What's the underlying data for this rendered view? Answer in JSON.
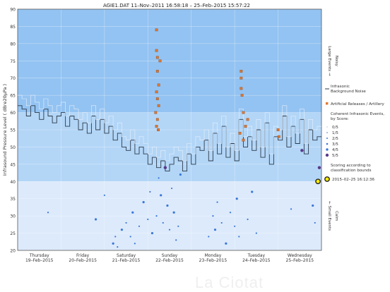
{
  "chart_data": {
    "type": "line",
    "title": "AGIE1.DAT   11–Nov–2011 16:58:18   –   25–Feb–2015 15:57:22",
    "ylabel": "Infrasound Pressure Level   ( dBre20µPa )",
    "ylim": [
      20,
      90
    ],
    "xlim": [
      0,
      7
    ],
    "grid": true,
    "y_ticks": [
      20,
      25,
      30,
      35,
      40,
      45,
      50,
      55,
      60,
      65,
      70,
      75,
      80,
      85,
      90
    ],
    "x_ticks": [
      {
        "x": 0.5,
        "day": "Thursday",
        "date": "19–Feb–2015"
      },
      {
        "x": 1.5,
        "day": "Friday",
        "date": "20–Feb–2015"
      },
      {
        "x": 2.5,
        "day": "Saturday",
        "date": "21–Feb–2015"
      },
      {
        "x": 3.5,
        "day": "Sunday",
        "date": "22–Feb–2015"
      },
      {
        "x": 4.5,
        "day": "Monday",
        "date": "23–Feb–2015"
      },
      {
        "x": 5.5,
        "day": "Tuesday",
        "date": "24–Feb–2015"
      },
      {
        "x": 6.5,
        "day": "Wednesday",
        "date": "25–Feb–2015"
      }
    ],
    "bands": [
      {
        "from": 20,
        "to": 40,
        "color": "#ddeafb",
        "label": "← Small Events",
        "sublabel": "Calm"
      },
      {
        "from": 40,
        "to": 60,
        "color": "#b3d6f7"
      },
      {
        "from": 60,
        "to": 90,
        "color": "#93c3f2",
        "label": "Large Events →",
        "sublabel": "Noisy"
      }
    ],
    "series": [
      {
        "name": "Infrasonic Background Noise",
        "color": "#2c3a4a",
        "x": [
          0.0,
          0.1,
          0.2,
          0.3,
          0.4,
          0.5,
          0.6,
          0.7,
          0.8,
          0.9,
          1.0,
          1.1,
          1.2,
          1.3,
          1.4,
          1.5,
          1.6,
          1.7,
          1.8,
          1.9,
          2.0,
          2.1,
          2.2,
          2.3,
          2.4,
          2.5,
          2.6,
          2.7,
          2.8,
          2.9,
          3.0,
          3.1,
          3.2,
          3.3,
          3.4,
          3.5,
          3.6,
          3.7,
          3.8,
          3.9,
          4.0,
          4.1,
          4.2,
          4.3,
          4.4,
          4.5,
          4.6,
          4.7,
          4.8,
          4.9,
          5.0,
          5.1,
          5.2,
          5.3,
          5.4,
          5.5,
          5.6,
          5.7,
          5.8,
          5.9,
          6.0,
          6.1,
          6.2,
          6.3,
          6.4,
          6.5,
          6.6,
          6.7,
          6.8,
          6.9
        ],
        "values": [
          62,
          61,
          59,
          62,
          60,
          58,
          61,
          59,
          57,
          59,
          60,
          56,
          59,
          58,
          55,
          57,
          54,
          59,
          55,
          58,
          54,
          56,
          52,
          54,
          50,
          49,
          52,
          48,
          50,
          48,
          45,
          47,
          44,
          46,
          43,
          45,
          47,
          46,
          43,
          48,
          45,
          50,
          49,
          52,
          46,
          54,
          48,
          56,
          47,
          51,
          46,
          58,
          50,
          53,
          49,
          55,
          47,
          57,
          45,
          53,
          52,
          59,
          50,
          56,
          51,
          58,
          48,
          55,
          52,
          53
        ]
      },
      {
        "name": "Artificial Releases / Artillery",
        "color": "#e07830",
        "points": [
          [
            3.2,
            84
          ],
          [
            3.2,
            78
          ],
          [
            3.22,
            76
          ],
          [
            3.28,
            75
          ],
          [
            3.22,
            72
          ],
          [
            3.25,
            68
          ],
          [
            3.2,
            66
          ],
          [
            3.22,
            64
          ],
          [
            3.25,
            62
          ],
          [
            3.18,
            60
          ],
          [
            3.22,
            58
          ],
          [
            3.2,
            56
          ],
          [
            3.24,
            55
          ],
          [
            5.15,
            72
          ],
          [
            5.15,
            70
          ],
          [
            5.15,
            67
          ],
          [
            5.17,
            65
          ],
          [
            5.2,
            60
          ],
          [
            5.3,
            58
          ],
          [
            5.25,
            56
          ],
          [
            5.12,
            54
          ],
          [
            5.2,
            52
          ],
          [
            6.0,
            55
          ],
          [
            6.02,
            53
          ]
        ]
      },
      {
        "name": "Coherent Infrasonic Events, by Score",
        "color": "#3a78d8",
        "points": [
          [
            2.2,
            22
          ],
          [
            2.25,
            24
          ],
          [
            2.3,
            21
          ],
          [
            2.4,
            26
          ],
          [
            2.5,
            28
          ],
          [
            2.6,
            24
          ],
          [
            2.65,
            31
          ],
          [
            2.7,
            22
          ],
          [
            2.8,
            27
          ],
          [
            2.9,
            34
          ],
          [
            3.0,
            29
          ],
          [
            3.05,
            37
          ],
          [
            3.1,
            25
          ],
          [
            3.2,
            30
          ],
          [
            3.25,
            41
          ],
          [
            3.3,
            36
          ],
          [
            3.35,
            28
          ],
          [
            3.4,
            44
          ],
          [
            3.45,
            33
          ],
          [
            3.5,
            26
          ],
          [
            3.55,
            38
          ],
          [
            3.6,
            31
          ],
          [
            3.65,
            23
          ],
          [
            3.7,
            27
          ],
          [
            3.75,
            42
          ],
          [
            4.4,
            24
          ],
          [
            4.5,
            30
          ],
          [
            4.55,
            26
          ],
          [
            4.6,
            34
          ],
          [
            4.7,
            28
          ],
          [
            4.8,
            22
          ],
          [
            4.9,
            31
          ],
          [
            5.0,
            27
          ],
          [
            5.05,
            35
          ],
          [
            5.1,
            24
          ],
          [
            5.3,
            29
          ],
          [
            5.4,
            37
          ],
          [
            5.5,
            25
          ],
          [
            6.3,
            32
          ],
          [
            6.8,
            33
          ],
          [
            6.85,
            28
          ],
          [
            2.0,
            36
          ],
          [
            1.8,
            29
          ],
          [
            0.7,
            31
          ],
          [
            6.55,
            49
          ],
          [
            6.95,
            44
          ]
        ]
      }
    ],
    "legend": {
      "placement": "right",
      "background_noise": "Infrasonic Background Noise",
      "artillery": "Artificial Releases / Artillery",
      "coherent_title": "Coherent Infrasonic Events, by Score:",
      "scores": [
        "0/5",
        "1/5",
        "2/5",
        "3/5",
        "4/5",
        "5/5"
      ],
      "scoring_note": "Scoring according to classification bounds",
      "highlight_label": "2015–02–25 16:12:36"
    },
    "highlight": {
      "x": 6.92,
      "y": 40
    }
  },
  "watermark": "La Ciotat",
  "colors": {
    "noise": "#2c3a4a",
    "artillery": "#e07830",
    "events": "#3a78d8",
    "strong": "#5a3a8a",
    "highlight": "#ffee00"
  }
}
